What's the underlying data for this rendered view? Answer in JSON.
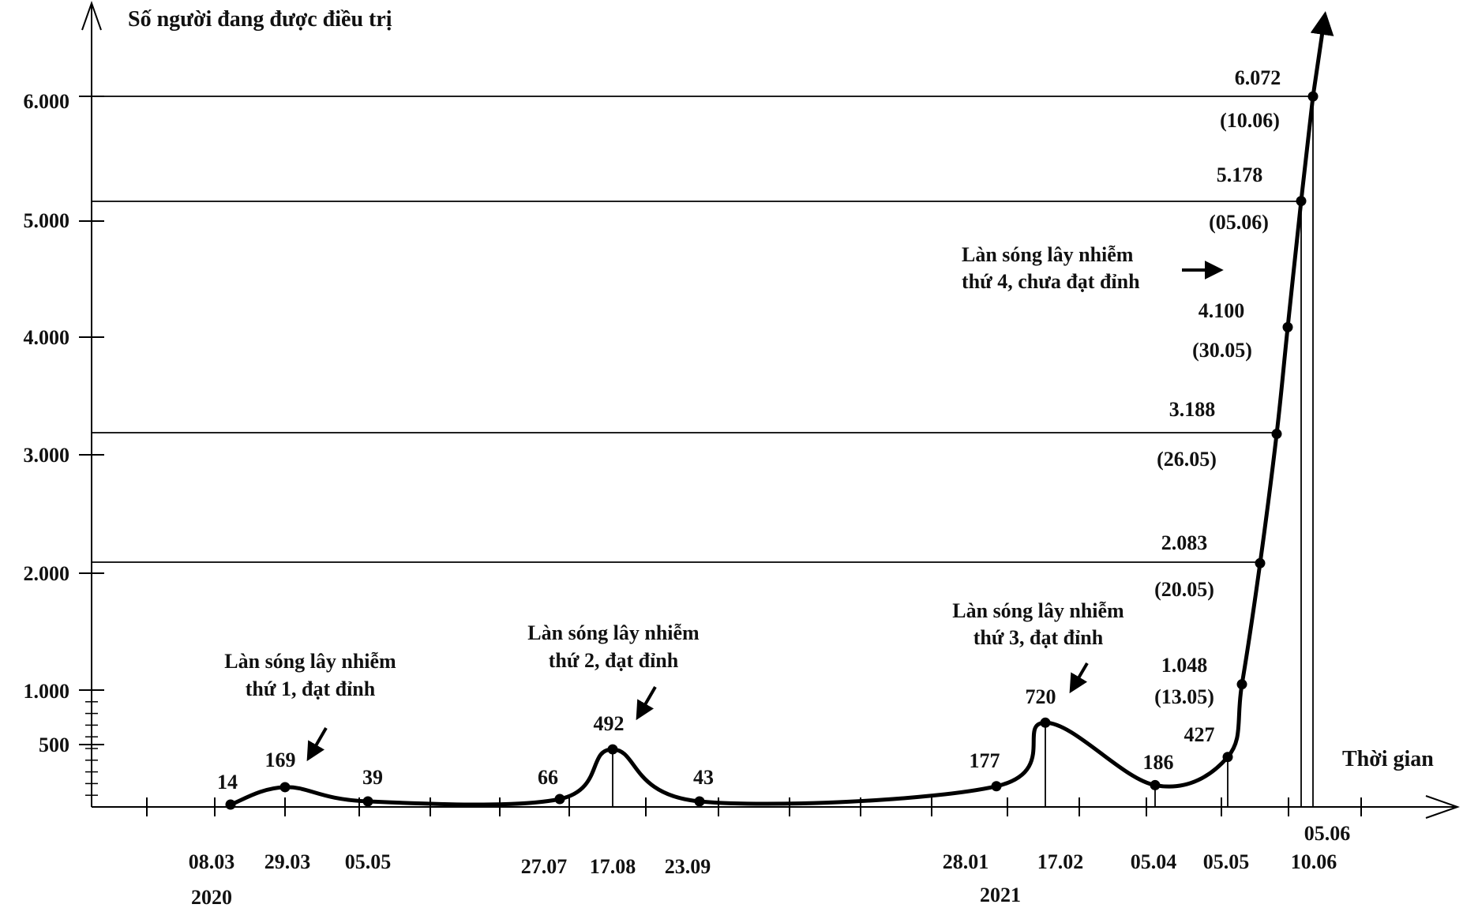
{
  "chart_data": {
    "type": "line",
    "title": "",
    "ylabel": "Số người đang được điều trị",
    "xlabel": "Thời gian",
    "yticks": [
      "6.000",
      "5.000",
      "4.000",
      "3.000",
      "2.000",
      "1.000",
      "500"
    ],
    "points": [
      {
        "date": "08.03",
        "value": 14,
        "value_label": "14"
      },
      {
        "date": "29.03",
        "value": 169,
        "value_label": "169"
      },
      {
        "date": "05.05",
        "value": 39,
        "value_label": "39"
      },
      {
        "date": "27.07",
        "value": 66,
        "value_label": "66"
      },
      {
        "date": "17.08",
        "value": 492,
        "value_label": "492"
      },
      {
        "date": "23.09",
        "value": 43,
        "value_label": "43"
      },
      {
        "date": "28.01",
        "value": 177,
        "value_label": "177"
      },
      {
        "date": "17.02",
        "value": 720,
        "value_label": "720"
      },
      {
        "date": "05.04",
        "value": 186,
        "value_label": "186"
      },
      {
        "date": "05.05",
        "value": 427,
        "value_label": "427"
      },
      {
        "date": "13.05",
        "value": 1048,
        "value_label": "1.048",
        "date_label": "(13.05)"
      },
      {
        "date": "20.05",
        "value": 2083,
        "value_label": "2.083",
        "date_label": "(20.05)"
      },
      {
        "date": "26.05",
        "value": 3188,
        "value_label": "3.188",
        "date_label": "(26.05)"
      },
      {
        "date": "30.05",
        "value": 4100,
        "value_label": "4.100",
        "date_label": "(30.05)"
      },
      {
        "date": "05.06",
        "value": 5178,
        "value_label": "5.178",
        "date_label": "(05.06)"
      },
      {
        "date": "10.06",
        "value": 6072,
        "value_label": "6.072",
        "date_label": "(10.06)"
      }
    ],
    "x_date_labels": [
      "08.03",
      "29.03",
      "05.05",
      "27.07",
      "17.08",
      "23.09",
      "28.01",
      "17.02",
      "05.04",
      "05.05",
      "05.06",
      "10.06"
    ],
    "year_labels": [
      "2020",
      "2021"
    ],
    "annotations": [
      {
        "lines": [
          "Làn sóng lây nhiễm",
          "thứ 1, đạt đỉnh"
        ]
      },
      {
        "lines": [
          "Làn sóng lây nhiễm",
          "thứ 2, đạt đỉnh"
        ]
      },
      {
        "lines": [
          "Làn sóng lây nhiễm",
          "thứ 3, đạt đỉnh"
        ]
      },
      {
        "lines": [
          "Làn sóng lây nhiễm",
          "thứ 4, chưa đạt đỉnh"
        ]
      }
    ],
    "line_color": "#000000"
  }
}
